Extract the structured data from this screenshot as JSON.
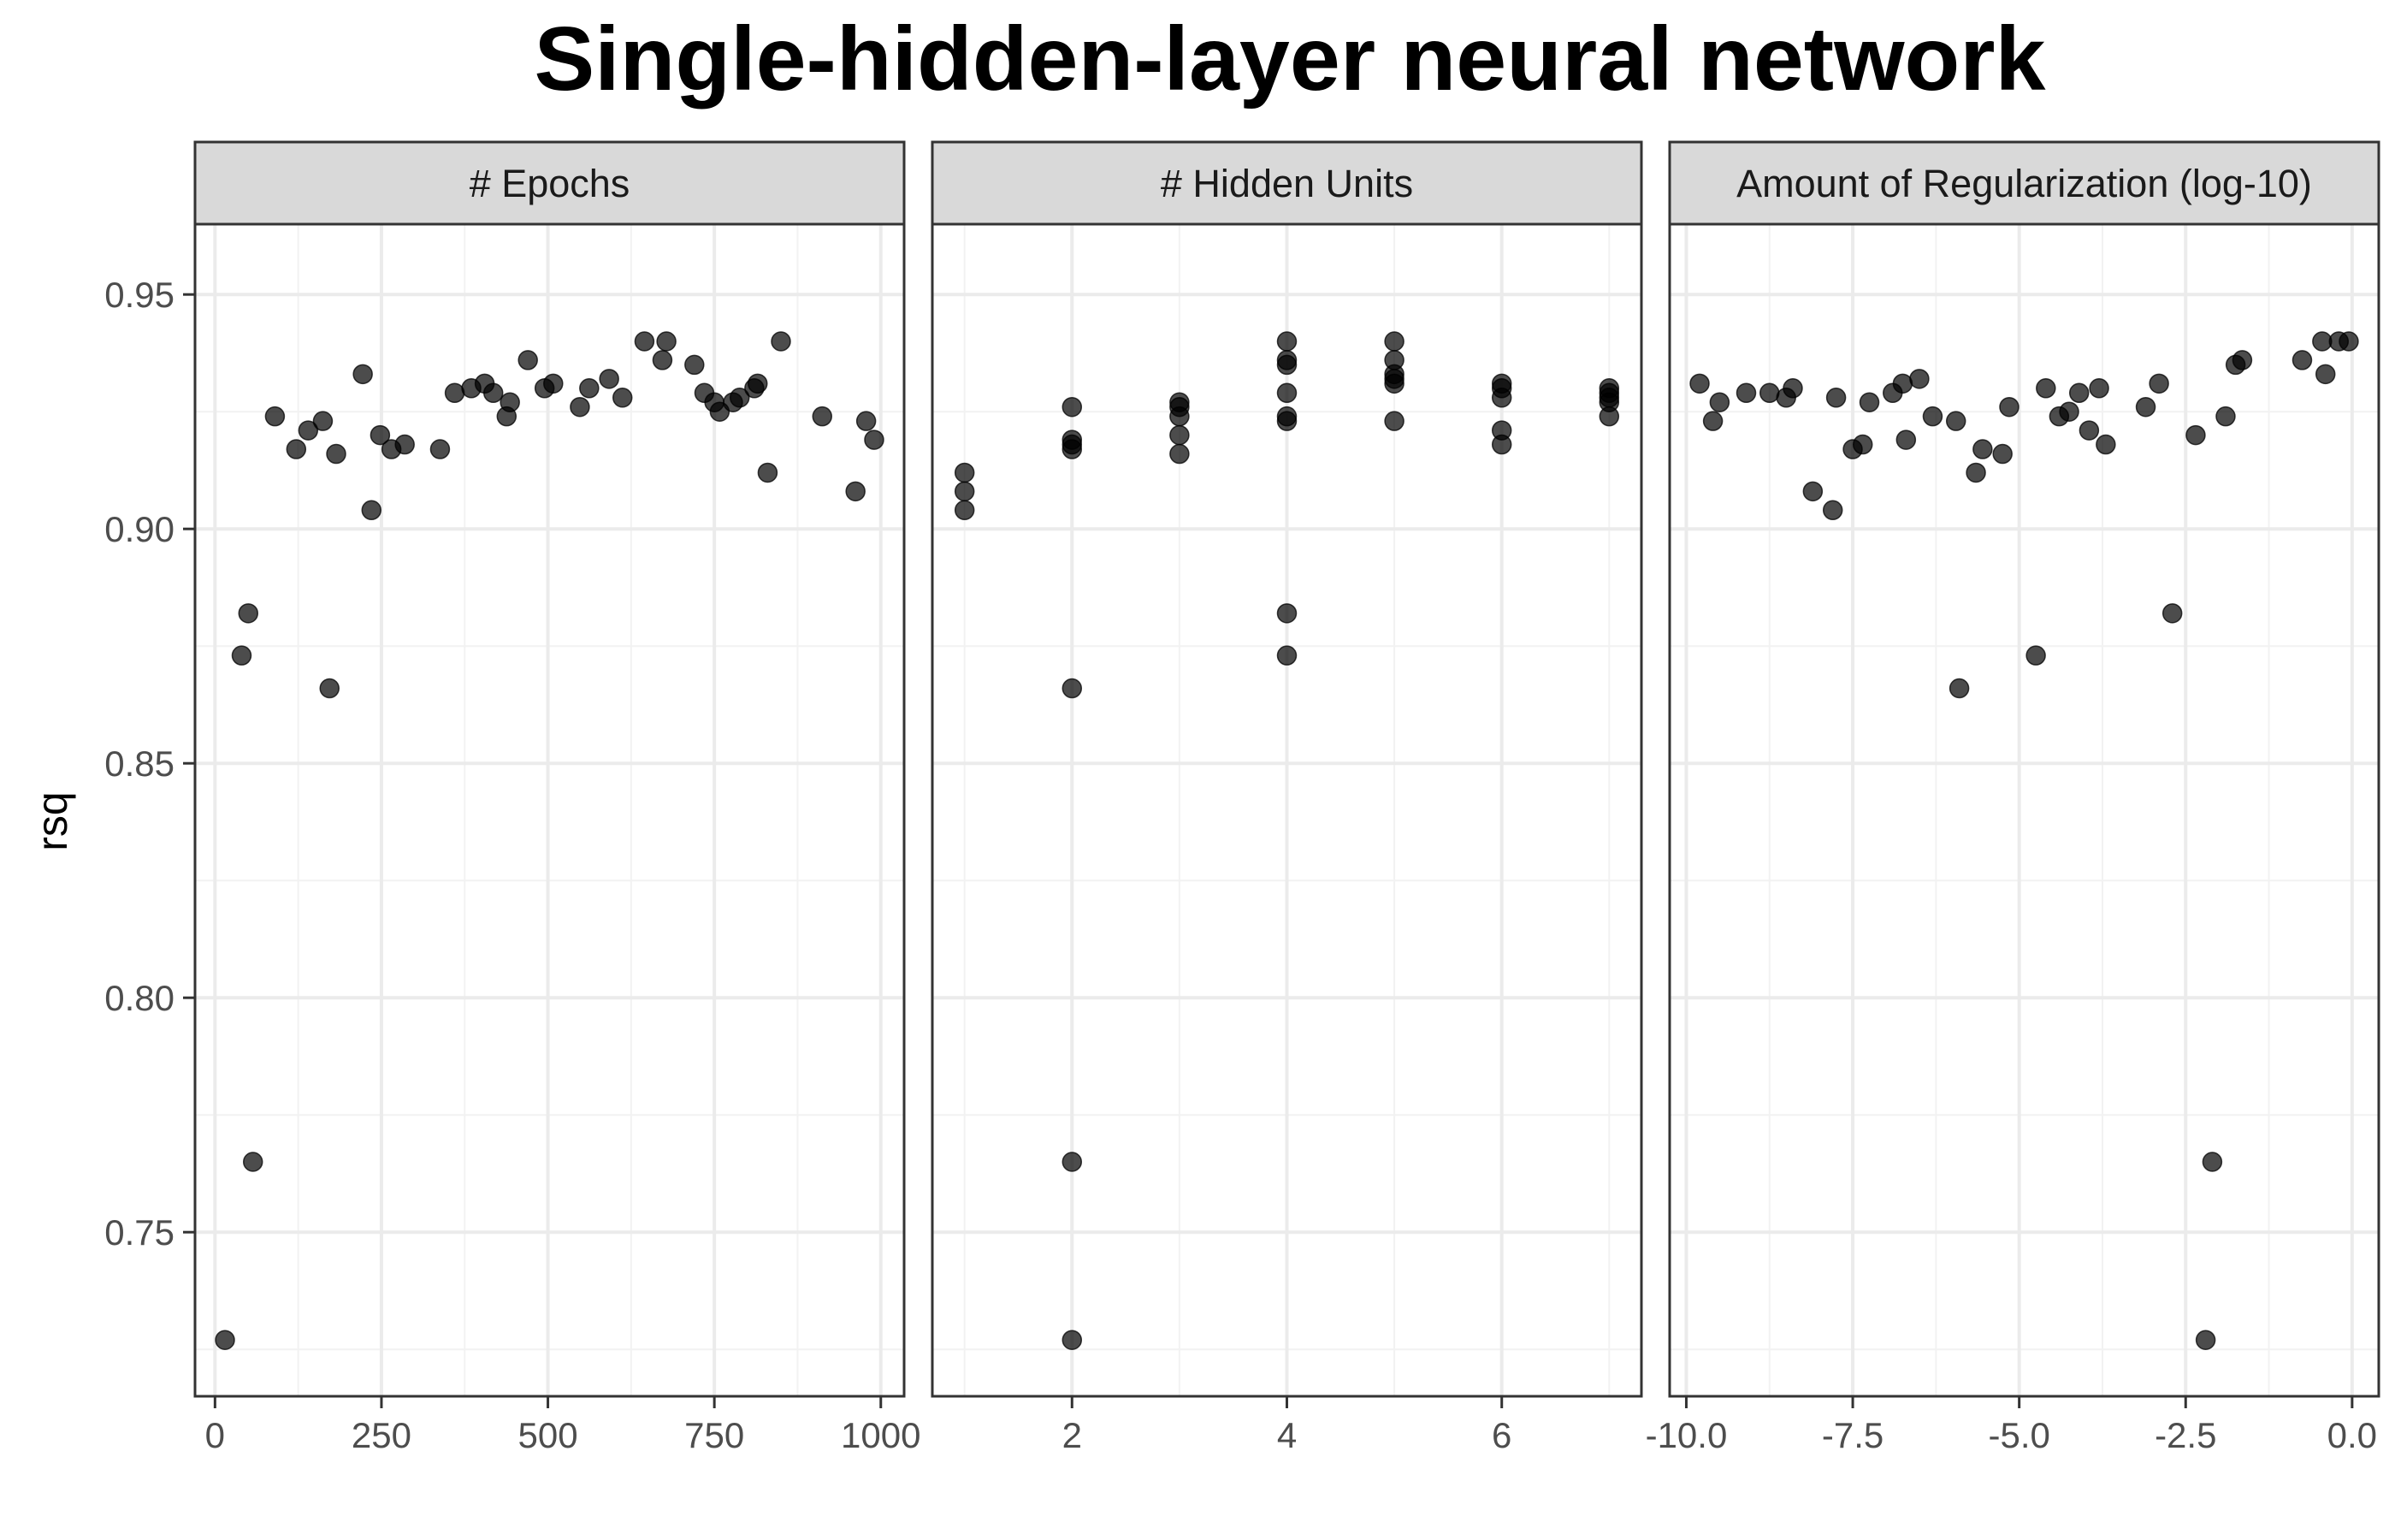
{
  "chart_data": {
    "type": "scatter",
    "title": "Single-hidden-layer neural network",
    "ylabel": "rsq",
    "ylim": [
      0.715,
      0.965
    ],
    "yticks": [
      0.75,
      0.8,
      0.85,
      0.9,
      0.95
    ],
    "ytick_labels": [
      "0.75",
      "0.80",
      "0.85",
      "0.90",
      "0.95"
    ],
    "grid": true,
    "panels": [
      {
        "strip": "# Epochs",
        "xlim": [
          -30,
          1035
        ],
        "xticks": [
          0,
          250,
          500,
          750,
          1000
        ],
        "xtick_labels": [
          "0",
          "250",
          "500",
          "750",
          "1000"
        ],
        "points": [
          {
            "x": 15,
            "y": 0.727
          },
          {
            "x": 40,
            "y": 0.873
          },
          {
            "x": 50,
            "y": 0.882
          },
          {
            "x": 57,
            "y": 0.765
          },
          {
            "x": 90,
            "y": 0.924
          },
          {
            "x": 122,
            "y": 0.917
          },
          {
            "x": 140,
            "y": 0.921
          },
          {
            "x": 162,
            "y": 0.923
          },
          {
            "x": 172,
            "y": 0.866
          },
          {
            "x": 182,
            "y": 0.916
          },
          {
            "x": 222,
            "y": 0.933
          },
          {
            "x": 235,
            "y": 0.904
          },
          {
            "x": 248,
            "y": 0.92
          },
          {
            "x": 265,
            "y": 0.917
          },
          {
            "x": 285,
            "y": 0.918
          },
          {
            "x": 338,
            "y": 0.917
          },
          {
            "x": 360,
            "y": 0.929
          },
          {
            "x": 385,
            "y": 0.93
          },
          {
            "x": 405,
            "y": 0.931
          },
          {
            "x": 418,
            "y": 0.929
          },
          {
            "x": 438,
            "y": 0.924
          },
          {
            "x": 443,
            "y": 0.927
          },
          {
            "x": 470,
            "y": 0.936
          },
          {
            "x": 495,
            "y": 0.93
          },
          {
            "x": 508,
            "y": 0.931
          },
          {
            "x": 548,
            "y": 0.926
          },
          {
            "x": 562,
            "y": 0.93
          },
          {
            "x": 592,
            "y": 0.932
          },
          {
            "x": 612,
            "y": 0.928
          },
          {
            "x": 645,
            "y": 0.94
          },
          {
            "x": 672,
            "y": 0.936
          },
          {
            "x": 678,
            "y": 0.94
          },
          {
            "x": 720,
            "y": 0.935
          },
          {
            "x": 735,
            "y": 0.929
          },
          {
            "x": 750,
            "y": 0.927
          },
          {
            "x": 758,
            "y": 0.925
          },
          {
            "x": 778,
            "y": 0.927
          },
          {
            "x": 788,
            "y": 0.928
          },
          {
            "x": 810,
            "y": 0.93
          },
          {
            "x": 815,
            "y": 0.931
          },
          {
            "x": 830,
            "y": 0.912
          },
          {
            "x": 850,
            "y": 0.94
          },
          {
            "x": 912,
            "y": 0.924
          },
          {
            "x": 962,
            "y": 0.908
          },
          {
            "x": 978,
            "y": 0.923
          },
          {
            "x": 990,
            "y": 0.919
          }
        ]
      },
      {
        "strip": "# Hidden Units",
        "xlim": [
          0.7,
          7.3
        ],
        "xticks": [
          2,
          4,
          6
        ],
        "xtick_labels": [
          "2",
          "4",
          "6"
        ],
        "points": [
          {
            "x": 1,
            "y": 0.912
          },
          {
            "x": 1,
            "y": 0.908
          },
          {
            "x": 1,
            "y": 0.904
          },
          {
            "x": 2,
            "y": 0.926
          },
          {
            "x": 2,
            "y": 0.919
          },
          {
            "x": 2,
            "y": 0.918
          },
          {
            "x": 2,
            "y": 0.917
          },
          {
            "x": 2,
            "y": 0.866
          },
          {
            "x": 2,
            "y": 0.765
          },
          {
            "x": 2,
            "y": 0.727
          },
          {
            "x": 3,
            "y": 0.927
          },
          {
            "x": 3,
            "y": 0.926
          },
          {
            "x": 3,
            "y": 0.924
          },
          {
            "x": 3,
            "y": 0.92
          },
          {
            "x": 3,
            "y": 0.916
          },
          {
            "x": 4,
            "y": 0.94
          },
          {
            "x": 4,
            "y": 0.936
          },
          {
            "x": 4,
            "y": 0.935
          },
          {
            "x": 4,
            "y": 0.929
          },
          {
            "x": 4,
            "y": 0.924
          },
          {
            "x": 4,
            "y": 0.923
          },
          {
            "x": 4,
            "y": 0.882
          },
          {
            "x": 4,
            "y": 0.873
          },
          {
            "x": 5,
            "y": 0.94
          },
          {
            "x": 5,
            "y": 0.936
          },
          {
            "x": 5,
            "y": 0.933
          },
          {
            "x": 5,
            "y": 0.932
          },
          {
            "x": 5,
            "y": 0.931
          },
          {
            "x": 5,
            "y": 0.923
          },
          {
            "x": 6,
            "y": 0.931
          },
          {
            "x": 6,
            "y": 0.93
          },
          {
            "x": 6,
            "y": 0.928
          },
          {
            "x": 6,
            "y": 0.921
          },
          {
            "x": 6,
            "y": 0.918
          },
          {
            "x": 7,
            "y": 0.93
          },
          {
            "x": 7,
            "y": 0.929
          },
          {
            "x": 7,
            "y": 0.928
          },
          {
            "x": 7,
            "y": 0.927
          },
          {
            "x": 7,
            "y": 0.924
          }
        ]
      },
      {
        "strip": "Amount of Regularization (log-10)",
        "xlim": [
          -10.25,
          0.4
        ],
        "xticks": [
          -10.0,
          -7.5,
          -5.0,
          -2.5,
          0.0
        ],
        "xtick_labels": [
          "-10.0",
          "-7.5",
          "-5.0",
          "-2.5",
          "0.0"
        ],
        "points": [
          {
            "x": -9.8,
            "y": 0.931
          },
          {
            "x": -9.6,
            "y": 0.923
          },
          {
            "x": -9.5,
            "y": 0.927
          },
          {
            "x": -9.1,
            "y": 0.929
          },
          {
            "x": -8.75,
            "y": 0.929
          },
          {
            "x": -8.5,
            "y": 0.928
          },
          {
            "x": -8.4,
            "y": 0.93
          },
          {
            "x": -8.1,
            "y": 0.908
          },
          {
            "x": -7.8,
            "y": 0.904
          },
          {
            "x": -7.75,
            "y": 0.928
          },
          {
            "x": -7.5,
            "y": 0.917
          },
          {
            "x": -7.35,
            "y": 0.918
          },
          {
            "x": -7.25,
            "y": 0.927
          },
          {
            "x": -6.9,
            "y": 0.929
          },
          {
            "x": -6.75,
            "y": 0.931
          },
          {
            "x": -6.7,
            "y": 0.919
          },
          {
            "x": -6.5,
            "y": 0.932
          },
          {
            "x": -6.3,
            "y": 0.924
          },
          {
            "x": -5.95,
            "y": 0.923
          },
          {
            "x": -5.9,
            "y": 0.866
          },
          {
            "x": -5.65,
            "y": 0.912
          },
          {
            "x": -5.55,
            "y": 0.917
          },
          {
            "x": -5.25,
            "y": 0.916
          },
          {
            "x": -5.15,
            "y": 0.926
          },
          {
            "x": -4.75,
            "y": 0.873
          },
          {
            "x": -4.6,
            "y": 0.93
          },
          {
            "x": -4.4,
            "y": 0.924
          },
          {
            "x": -4.25,
            "y": 0.925
          },
          {
            "x": -4.1,
            "y": 0.929
          },
          {
            "x": -3.95,
            "y": 0.921
          },
          {
            "x": -3.8,
            "y": 0.93
          },
          {
            "x": -3.7,
            "y": 0.918
          },
          {
            "x": -3.1,
            "y": 0.926
          },
          {
            "x": -2.9,
            "y": 0.931
          },
          {
            "x": -2.7,
            "y": 0.882
          },
          {
            "x": -2.35,
            "y": 0.92
          },
          {
            "x": -2.2,
            "y": 0.727
          },
          {
            "x": -2.1,
            "y": 0.765
          },
          {
            "x": -1.9,
            "y": 0.924
          },
          {
            "x": -1.75,
            "y": 0.935
          },
          {
            "x": -1.65,
            "y": 0.936
          },
          {
            "x": -0.75,
            "y": 0.936
          },
          {
            "x": -0.45,
            "y": 0.94
          },
          {
            "x": -0.4,
            "y": 0.933
          },
          {
            "x": -0.2,
            "y": 0.94
          },
          {
            "x": -0.05,
            "y": 0.94
          }
        ]
      }
    ]
  }
}
